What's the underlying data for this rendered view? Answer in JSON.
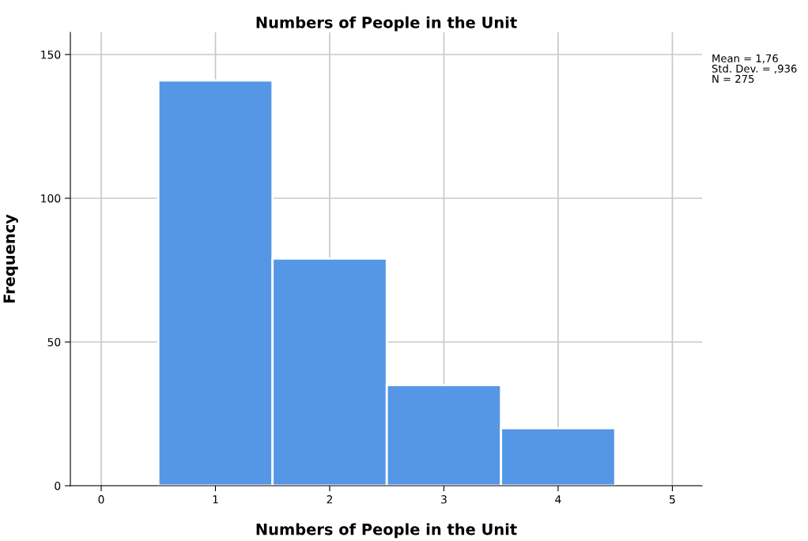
{
  "chart_data": {
    "type": "histogram",
    "title": "Numbers of People in the Unit",
    "xlabel": "Numbers of People in the Unit",
    "ylabel": "Frequency",
    "bins": [
      0.5,
      1.5,
      2.5,
      3.5,
      4.5
    ],
    "values": [
      141,
      79,
      35,
      20
    ],
    "color": "#5596e6",
    "xlim": [
      -0.27,
      5.26
    ],
    "xticks": [
      0,
      1,
      2,
      3,
      4,
      5
    ],
    "ylim": [
      0,
      157.7
    ],
    "yticks": [
      0,
      50,
      100,
      150
    ],
    "grid": true,
    "annotations": [
      "Mean = 1,76",
      "Std. Dev. = ,936",
      "N = 275"
    ]
  }
}
